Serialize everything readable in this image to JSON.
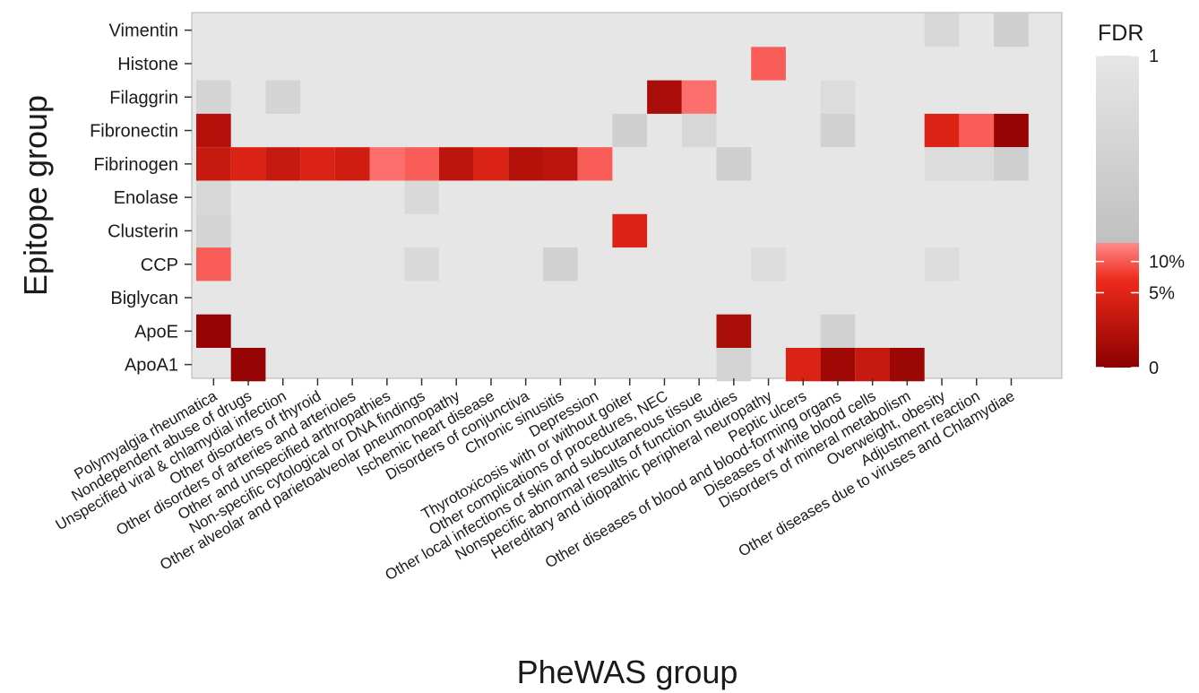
{
  "chart_data": {
    "type": "heatmap",
    "xlabel": "PheWAS group",
    "ylabel": "Epitope group",
    "y_categories": [
      "Vimentin",
      "Histone",
      "Filaggrin",
      "Fibronectin",
      "Fibrinogen",
      "Enolase",
      "Clusterin",
      "CCP",
      "Biglycan",
      "ApoE",
      "ApoA1"
    ],
    "x_categories": [
      "Polymyalgia rheumatica",
      "Nondependent abuse of drugs",
      "Unspecified viral & chlamydial infection",
      "Other disorders of thyroid",
      "Other disorders of arteries and arterioles",
      "Other and unspecified arthropathies",
      "Non-specific cytological or DNA findings",
      "Other alveolar and parietoalveolar pneumonopathy",
      "Ischemic heart disease",
      "Disorders of conjunctiva",
      "Chronic sinusitis",
      "Depression",
      "Thyrotoxicosis with or without goiter",
      "Other complications of procedures, NEC",
      "Other local infections of skin and subcutaneous tissue",
      "Nonspecific abnormal results of function studies",
      "Hereditary and idiopathic peripheral neuropathy",
      "Peptic ulcers",
      "Other diseases of blood and blood-forming organs",
      "Diseases of white blood cells",
      "Disorders of mineral metabolism",
      "Overweight, obesity",
      "Adjustment reaction",
      "Other diseases due to viruses and Chlamydiae"
    ],
    "values": [
      [
        1,
        1,
        1,
        1,
        1,
        1,
        1,
        1,
        1,
        1,
        1,
        1,
        1,
        1,
        1,
        1,
        1,
        1,
        1,
        1,
        1,
        0.75,
        1,
        0.6
      ],
      [
        1,
        1,
        1,
        1,
        1,
        1,
        1,
        1,
        1,
        1,
        1,
        1,
        1,
        1,
        1,
        1,
        0.08,
        1,
        1,
        1,
        1,
        1,
        1,
        1
      ],
      [
        0.7,
        1,
        0.7,
        1,
        1,
        1,
        1,
        1,
        1,
        1,
        1,
        1,
        1,
        0.015,
        0.09,
        1,
        1,
        1,
        0.85,
        1,
        1,
        1,
        1,
        1
      ],
      [
        0.02,
        1,
        1,
        1,
        1,
        1,
        1,
        1,
        1,
        1,
        1,
        1,
        0.6,
        1,
        0.75,
        1,
        1,
        1,
        0.65,
        1,
        1,
        0.04,
        0.08,
        0.005
      ],
      [
        0.03,
        0.04,
        0.03,
        0.04,
        0.035,
        0.09,
        0.08,
        0.025,
        0.04,
        0.02,
        0.025,
        0.08,
        1,
        1,
        1,
        0.6,
        1,
        1,
        1,
        1,
        1,
        0.85,
        0.85,
        0.6
      ],
      [
        0.75,
        1,
        1,
        1,
        1,
        1,
        0.8,
        1,
        1,
        1,
        1,
        1,
        1,
        1,
        1,
        1,
        1,
        1,
        1,
        1,
        1,
        1,
        1,
        1
      ],
      [
        0.7,
        1,
        1,
        1,
        1,
        1,
        1,
        1,
        1,
        1,
        1,
        1,
        0.04,
        1,
        1,
        1,
        1,
        1,
        1,
        1,
        1,
        1,
        1,
        1
      ],
      [
        0.08,
        1,
        1,
        1,
        1,
        1,
        0.8,
        1,
        1,
        1,
        0.65,
        1,
        1,
        1,
        1,
        1,
        0.85,
        1,
        1,
        1,
        1,
        0.85,
        1,
        1
      ],
      [
        1,
        1,
        1,
        1,
        1,
        1,
        1,
        1,
        1,
        1,
        1,
        1,
        1,
        1,
        1,
        1,
        1,
        1,
        1,
        1,
        1,
        1,
        1,
        1
      ],
      [
        0.005,
        1,
        1,
        1,
        1,
        1,
        1,
        1,
        1,
        1,
        1,
        1,
        1,
        1,
        1,
        0.015,
        1,
        1,
        0.65,
        1,
        1,
        1,
        1,
        1
      ],
      [
        1,
        0.005,
        1,
        1,
        1,
        1,
        1,
        1,
        1,
        1,
        1,
        1,
        1,
        1,
        1,
        0.7,
        1,
        0.04,
        0.01,
        0.03,
        0.008,
        1,
        1,
        1
      ]
    ],
    "legend": {
      "title": "FDR",
      "ticks": [
        {
          "value": 1,
          "label": "1"
        },
        {
          "value": 0.1,
          "label": "10%"
        },
        {
          "value": 0.05,
          "label": "5%"
        },
        {
          "value": 0,
          "label": "0"
        }
      ],
      "placement": "right"
    },
    "colors": {
      "panel": "#e6e6e6",
      "high": "#e6e6e6",
      "mid": "#c0c0c0",
      "low_light": "#ff8080",
      "low_mid": "#ee2a1a",
      "zero": "#8b0000"
    }
  }
}
